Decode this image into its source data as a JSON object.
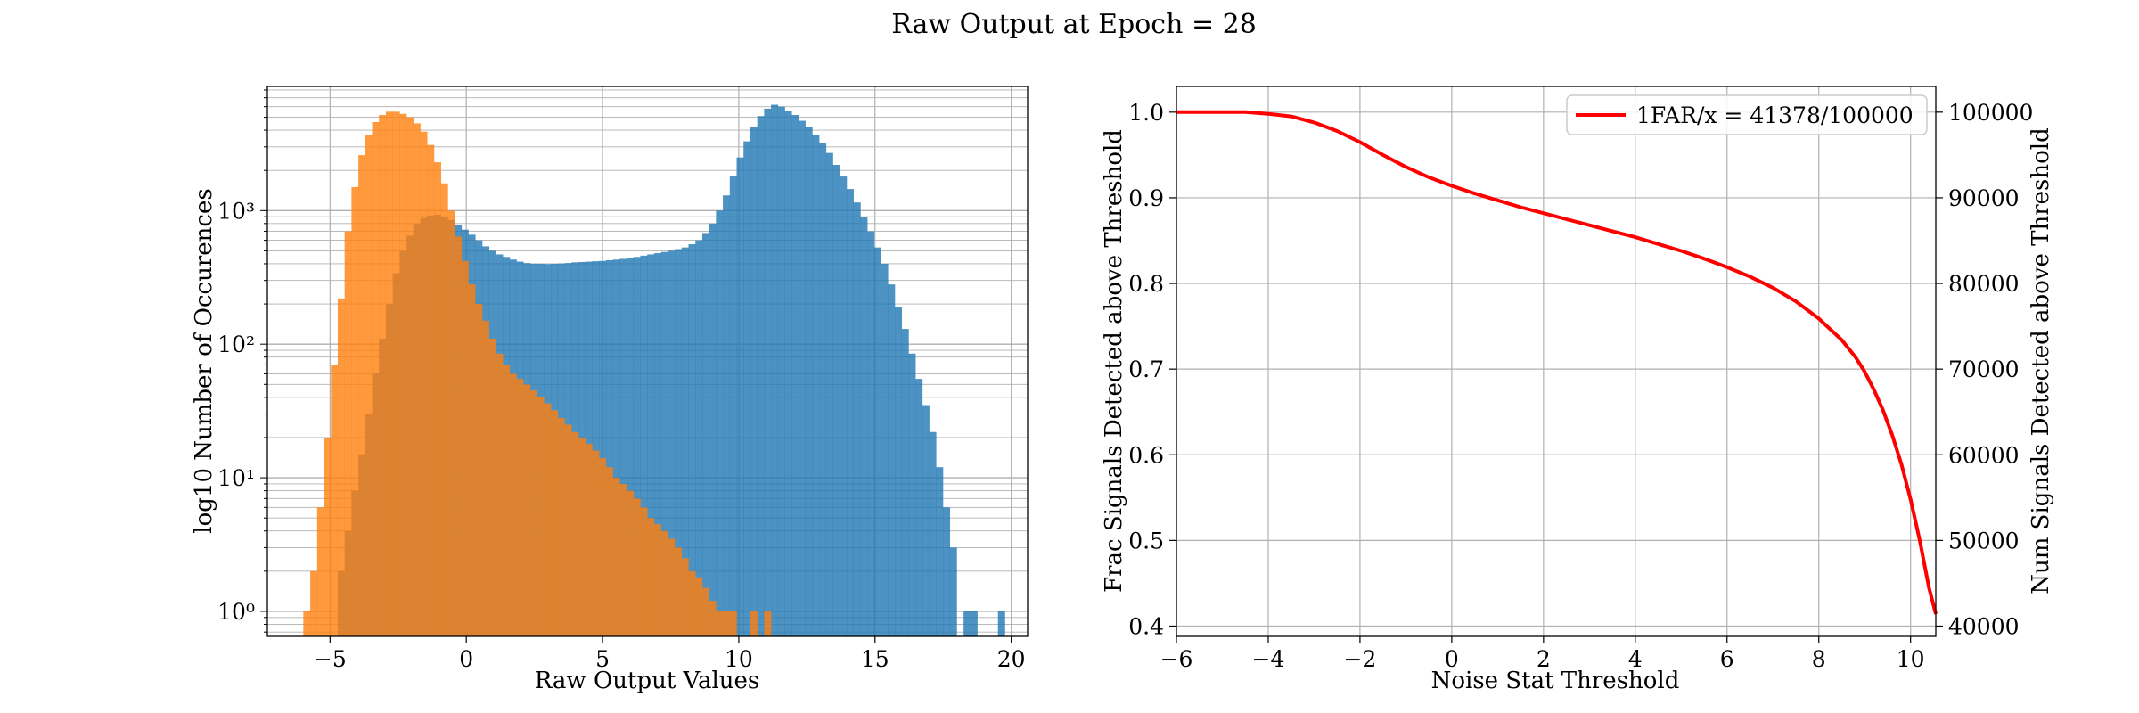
{
  "figure": {
    "suptitle": "Raw Output at Epoch = 28"
  },
  "colors": {
    "signal": "#1f77b4",
    "noise": "#ff7f0e",
    "curve": "#ff0000",
    "grid": "#b0b0b0"
  },
  "chart_data": [
    {
      "type": "bar",
      "subtype": "histogram-overlay",
      "title": "",
      "xlabel": "Raw Output Values",
      "ylabel": "log10 Number of Occurences",
      "yscale": "log",
      "xlim": [
        -7.3,
        20.6
      ],
      "ylim": [
        0.65,
        8500
      ],
      "grid": true,
      "xticks": [
        -5,
        0,
        5,
        10,
        15,
        20
      ],
      "xtick_labels": [
        "−5",
        "0",
        "5",
        "10",
        "15",
        "20"
      ],
      "yticks": [
        1,
        10,
        100,
        1000
      ],
      "ytick_labels": [
        "10⁰",
        "10¹",
        "10²",
        "10³"
      ],
      "series": [
        {
          "name": "",
          "color": "#1f77b4",
          "alpha": 0.8,
          "bin_start": -5.98,
          "bin_width": 0.2524,
          "counts": [
            0,
            0,
            0,
            0,
            0,
            2,
            4,
            8,
            15,
            30,
            60,
            110,
            200,
            340,
            500,
            650,
            800,
            880,
            920,
            930,
            900,
            850,
            780,
            720,
            660,
            600,
            540,
            500,
            470,
            450,
            430,
            415,
            405,
            400,
            400,
            398,
            400,
            402,
            405,
            410,
            412,
            415,
            418,
            420,
            425,
            430,
            435,
            440,
            450,
            460,
            470,
            480,
            490,
            500,
            515,
            530,
            560,
            600,
            680,
            800,
            1000,
            1300,
            1800,
            2500,
            3300,
            4200,
            5100,
            5800,
            6200,
            6000,
            5600,
            5200,
            4700,
            4200,
            3700,
            3200,
            2700,
            2200,
            1800,
            1450,
            1150,
            900,
            700,
            530,
            400,
            280,
            190,
            130,
            85,
            55,
            35,
            22,
            12,
            6,
            3,
            0,
            1,
            1,
            0,
            0,
            0,
            1
          ]
        },
        {
          "name": "",
          "color": "#ff7f0e",
          "alpha": 0.8,
          "bin_start": -5.98,
          "bin_width": 0.2524,
          "counts": [
            1,
            2,
            6,
            20,
            70,
            220,
            700,
            1500,
            2600,
            3700,
            4600,
            5200,
            5500,
            5500,
            5300,
            5000,
            4500,
            3900,
            3100,
            2300,
            1600,
            1000,
            640,
            420,
            280,
            200,
            150,
            110,
            85,
            70,
            60,
            55,
            50,
            45,
            40,
            36,
            32,
            28,
            25,
            22,
            20,
            18,
            16,
            14,
            12,
            10,
            9,
            8,
            7,
            6,
            5,
            4.5,
            4,
            3.5,
            3,
            2.5,
            2,
            1.8,
            1.5,
            1.2,
            1,
            1,
            1,
            0,
            0,
            1,
            0,
            1,
            0,
            0,
            0,
            0,
            0,
            0,
            0,
            0,
            0,
            0,
            0,
            0,
            0,
            0,
            0,
            0,
            0,
            0,
            0,
            0,
            0,
            0,
            0,
            0,
            0,
            0,
            0,
            0,
            0,
            0,
            0,
            0,
            0,
            0
          ]
        }
      ]
    },
    {
      "type": "line",
      "title": "",
      "xlabel": "Noise Stat Threshold",
      "ylabel": "Frac Signals Detected above Threshold",
      "ylabel_right": "Num Signals Detected above Threshold",
      "xlim": [
        -6,
        10.55
      ],
      "ylim": [
        0.388,
        1.03
      ],
      "ylim_right": [
        38800,
        103000
      ],
      "grid": true,
      "legend_position": "top-right",
      "xticks": [
        -6,
        -4,
        -2,
        0,
        2,
        4,
        6,
        8,
        10
      ],
      "xtick_labels": [
        "−6",
        "−4",
        "−2",
        "0",
        "2",
        "4",
        "6",
        "8",
        "10"
      ],
      "yticks": [
        0.4,
        0.5,
        0.6,
        0.7,
        0.8,
        0.9,
        1.0
      ],
      "ytick_labels": [
        "0.4",
        "0.5",
        "0.6",
        "0.7",
        "0.8",
        "0.9",
        "1.0"
      ],
      "yticks_right": [
        40000,
        50000,
        60000,
        70000,
        80000,
        90000,
        100000
      ],
      "ytick_labels_right": [
        "40000",
        "50000",
        "60000",
        "70000",
        "80000",
        "90000",
        "100000"
      ],
      "series": [
        {
          "name": "1FAR/x = 41378/100000",
          "color": "#ff0000",
          "x": [
            -6,
            -5,
            -4.5,
            -4,
            -3.5,
            -3,
            -2.5,
            -2,
            -1.5,
            -1,
            -0.5,
            0,
            0.5,
            1,
            1.5,
            2,
            2.5,
            3,
            3.5,
            4,
            4.5,
            5,
            5.5,
            6,
            6.5,
            7,
            7.5,
            8,
            8.5,
            8.8,
            9,
            9.2,
            9.4,
            9.6,
            9.8,
            10,
            10.2,
            10.4,
            10.55
          ],
          "y": [
            1.0,
            1.0,
            1.0,
            0.998,
            0.995,
            0.988,
            0.978,
            0.965,
            0.95,
            0.936,
            0.924,
            0.914,
            0.905,
            0.897,
            0.889,
            0.882,
            0.875,
            0.868,
            0.861,
            0.854,
            0.846,
            0.838,
            0.829,
            0.819,
            0.808,
            0.795,
            0.779,
            0.759,
            0.734,
            0.714,
            0.697,
            0.676,
            0.652,
            0.623,
            0.589,
            0.548,
            0.5,
            0.445,
            0.414
          ]
        }
      ]
    }
  ]
}
